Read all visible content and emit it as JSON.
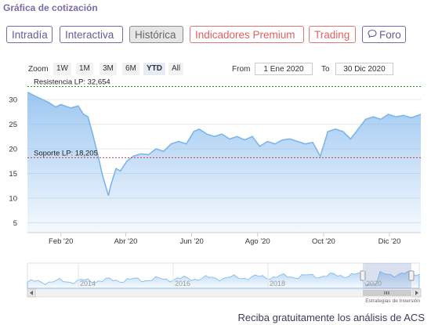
{
  "title": "Gráfica de cotización",
  "tabs": [
    {
      "label": "Intradía",
      "style": "purple"
    },
    {
      "label": "Interactiva",
      "style": "purple"
    },
    {
      "label": "Histórica",
      "style": "active"
    },
    {
      "label": "Indicadores Premium",
      "style": "red"
    },
    {
      "label": "Trading",
      "style": "red"
    },
    {
      "label": "Foro",
      "style": "purple",
      "icon": "chat-bubble-icon"
    }
  ],
  "range_selector": {
    "zoom_label": "Zoom",
    "buttons": [
      "1W",
      "1M",
      "3M",
      "6M",
      "YTD",
      "All"
    ],
    "selected": "YTD",
    "from_label": "From",
    "from_value": "1 Ene 2020",
    "to_label": "To",
    "to_value": "30 Dic 2020"
  },
  "navigator": {
    "year_labels": [
      "2014",
      "2016",
      "2018",
      "2020"
    ]
  },
  "credit": "Estrategias de Inversión",
  "footer_text": "Reciba gratuitamente los análisis de ACS",
  "colors": {
    "line": "#7cb5ec",
    "resistance": "#2e8b2e",
    "support": "#d23c3c",
    "tab_purple": "#7b6aa8",
    "tab_red": "#e07777"
  },
  "chart_data": {
    "type": "area",
    "x": [
      "2020-01-01",
      "2020-01-10",
      "2020-01-20",
      "2020-01-27",
      "2020-02-01",
      "2020-02-10",
      "2020-02-17",
      "2020-02-22",
      "2020-02-26",
      "2020-03-02",
      "2020-03-07",
      "2020-03-10",
      "2020-03-12",
      "2020-03-16",
      "2020-03-18",
      "2020-03-23",
      "2020-03-27",
      "2020-04-02",
      "2020-04-08",
      "2020-04-15",
      "2020-04-22",
      "2020-04-29",
      "2020-05-06",
      "2020-05-13",
      "2020-05-20",
      "2020-05-27",
      "2020-06-03",
      "2020-06-08",
      "2020-06-15",
      "2020-06-22",
      "2020-06-29",
      "2020-07-06",
      "2020-07-13",
      "2020-07-20",
      "2020-07-27",
      "2020-08-03",
      "2020-08-10",
      "2020-08-17",
      "2020-08-24",
      "2020-08-31",
      "2020-09-07",
      "2020-09-14",
      "2020-09-21",
      "2020-09-28",
      "2020-10-05",
      "2020-10-12",
      "2020-10-19",
      "2020-10-26",
      "2020-11-02",
      "2020-11-09",
      "2020-11-16",
      "2020-11-23",
      "2020-11-30",
      "2020-12-07",
      "2020-12-14",
      "2020-12-21",
      "2020-12-30"
    ],
    "y": [
      31.5,
      30.5,
      29.5,
      28.5,
      29.0,
      28.3,
      28.7,
      27.0,
      26.5,
      22.5,
      18.0,
      15.0,
      13.5,
      10.5,
      12.5,
      16.0,
      15.5,
      17.5,
      18.5,
      19.0,
      18.8,
      20.0,
      19.5,
      21.0,
      21.5,
      21.0,
      23.5,
      24.0,
      23.0,
      22.5,
      23.0,
      22.0,
      22.5,
      21.8,
      22.5,
      20.5,
      21.5,
      21.0,
      21.8,
      22.0,
      21.5,
      21.0,
      21.3,
      18.5,
      23.5,
      24.0,
      23.5,
      22.0,
      24.0,
      26.0,
      26.5,
      26.0,
      27.0,
      26.5,
      26.8,
      26.3,
      27.0
    ],
    "x_tick_labels": [
      "Feb '20",
      "Abr '20",
      "Jun '20",
      "Ago '20",
      "Oct '20",
      "Dic '20"
    ],
    "y_tick_labels": [
      "5",
      "10",
      "15",
      "20",
      "25",
      "30"
    ],
    "ylim": [
      3,
      34
    ],
    "annotations": [
      {
        "label": "Resistencia LP: 32,654",
        "value": 32.654,
        "style": "dashed",
        "color": "#2e8b2e"
      },
      {
        "label": "Soporte LP: 18,205",
        "value": 18.205,
        "style": "dashed",
        "color": "#d23c3c"
      }
    ],
    "grid": true,
    "legend": "none"
  }
}
